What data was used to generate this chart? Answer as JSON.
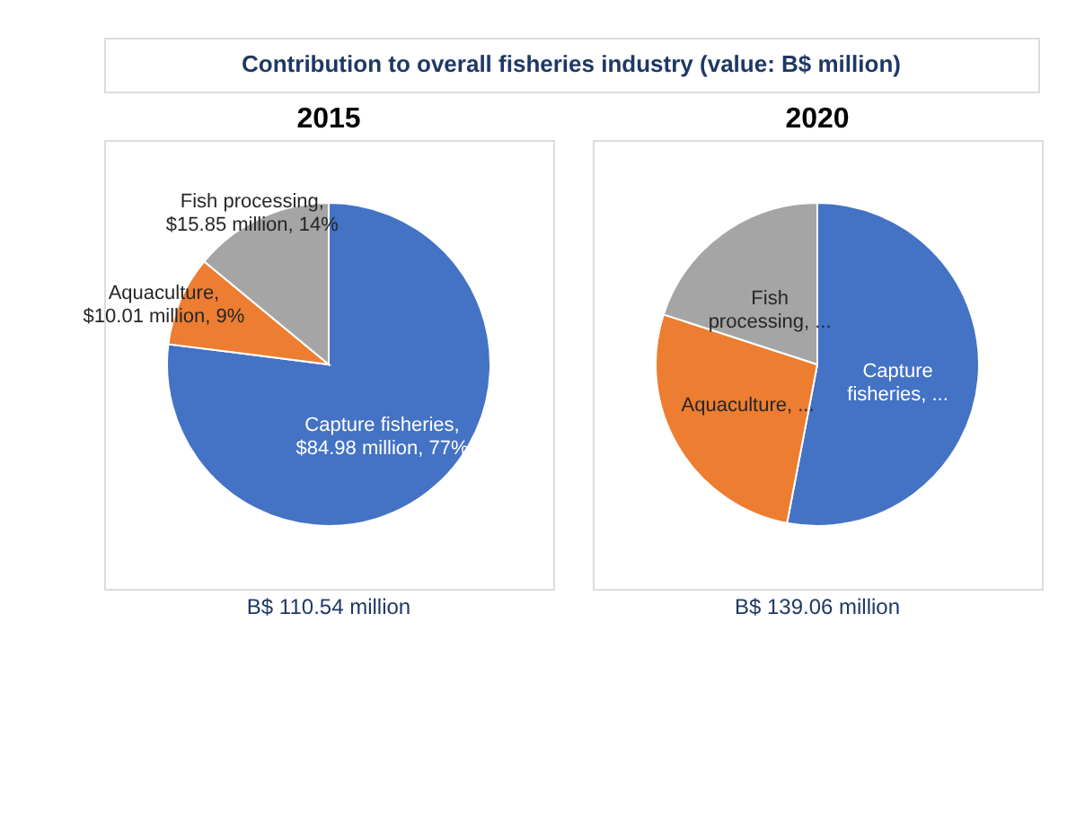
{
  "chart_data": [
    {
      "type": "other",
      "title": "Contribution to overall fisheries industry  (value: B$ million)"
    },
    {
      "type": "pie",
      "title": "2015",
      "categories": [
        "Capture fisheries",
        "Aquaculture",
        "Fish processing"
      ],
      "values": [
        77,
        9,
        14
      ],
      "colors": [
        "#4472c4",
        "#ed7d31",
        "#a5a5a5"
      ],
      "value_labels": [
        ",\n$84.98 million, 77%",
        ",\n$10.01 million, 9%",
        ",\n$15.85 million, 14%"
      ],
      "annotations": [
        "B$ 110.54 million"
      ]
    },
    {
      "type": "pie",
      "title": "2020",
      "categories": [
        "Capture fisheries",
        "Aquaculture",
        "Fish processing"
      ],
      "values": [
        53,
        27,
        20
      ],
      "colors": [
        "#4472c4",
        "#ed7d31",
        "#a5a5a5"
      ],
      "value_labels": [
        ", ...",
        ", ...",
        ", ..."
      ],
      "annotations": [
        "B$ 139.06 million"
      ]
    }
  ]
}
